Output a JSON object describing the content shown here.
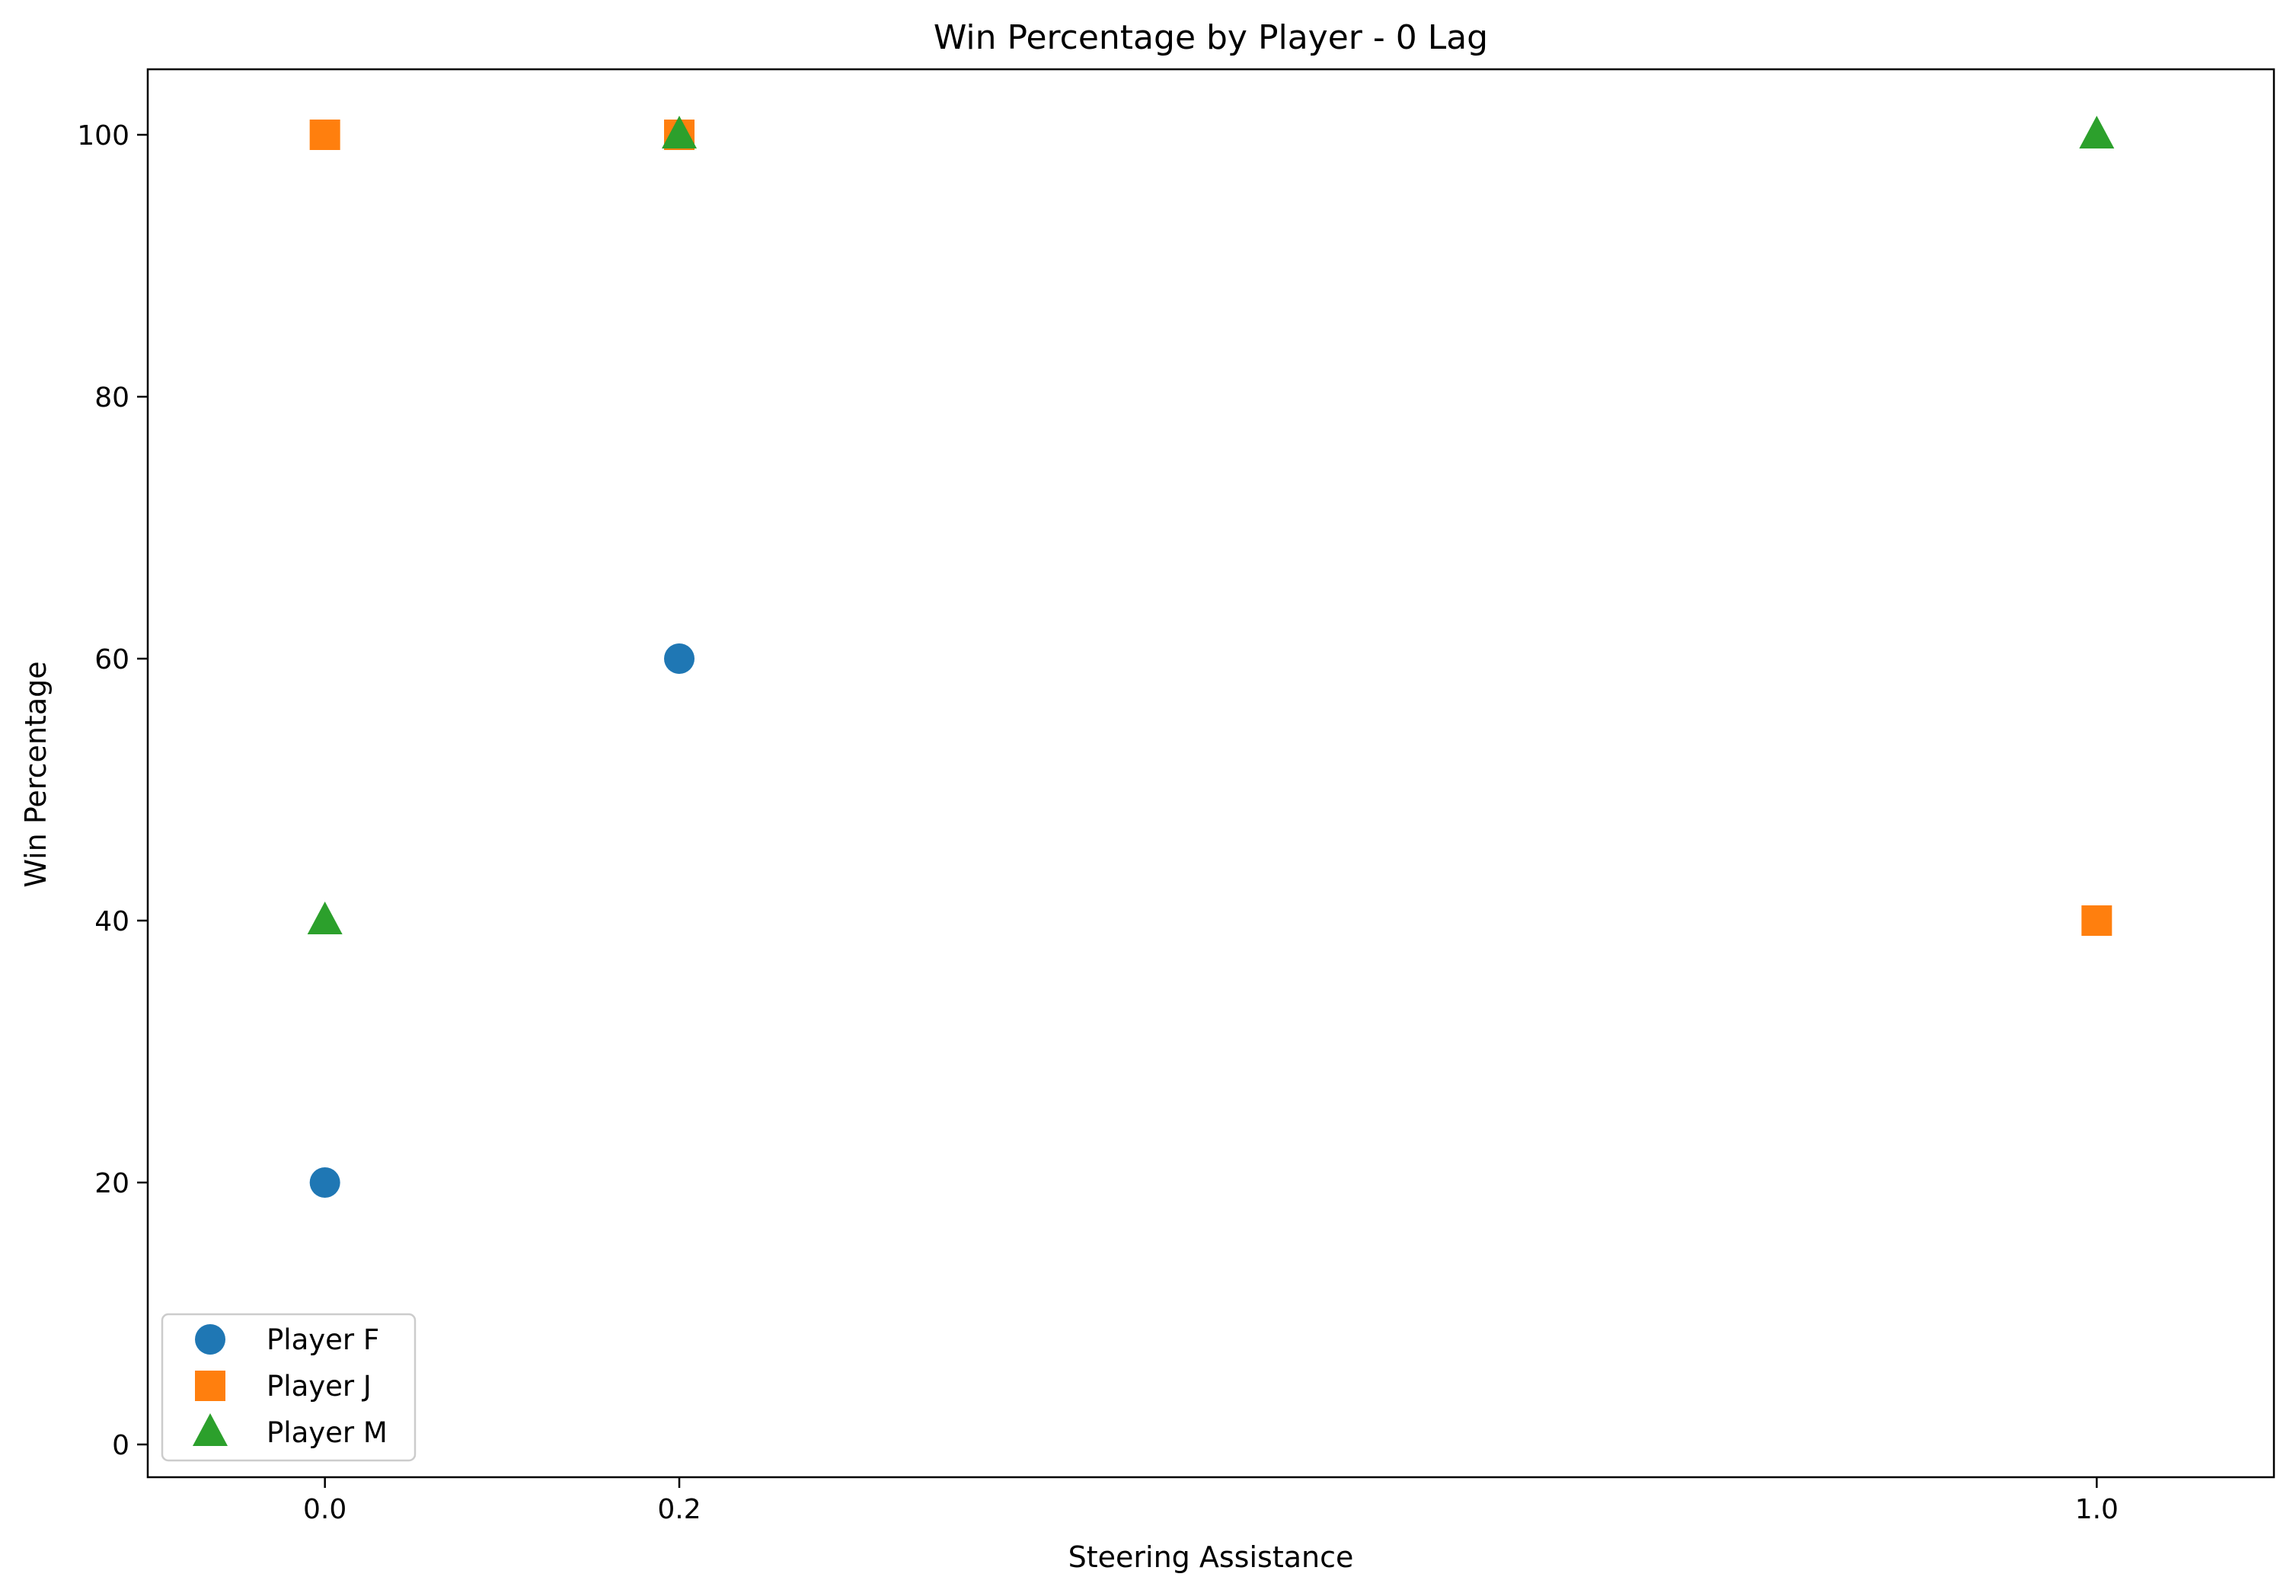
{
  "chart_data": {
    "type": "scatter",
    "title": "Win Percentage by Player - 0 Lag",
    "xlabel": "Steering Assistance",
    "ylabel": "Win Percentage",
    "x_ticks": [
      0.0,
      0.2,
      1.0
    ],
    "x_tick_labels": [
      "0.0",
      "0.2",
      "1.0"
    ],
    "y_ticks": [
      0,
      20,
      40,
      60,
      80,
      100
    ],
    "y_tick_labels": [
      "0",
      "20",
      "40",
      "60",
      "80",
      "100"
    ],
    "xlim": [
      -0.1,
      1.1
    ],
    "ylim": [
      -2.5,
      105
    ],
    "grid": false,
    "legend_position": "lower-left",
    "series": [
      {
        "name": "Player F",
        "marker": "circle",
        "color": "#1f77b4",
        "x": [
          0.0,
          0.2
        ],
        "y": [
          20,
          60
        ]
      },
      {
        "name": "Player J",
        "marker": "square",
        "color": "#ff7f0e",
        "x": [
          0.0,
          0.2,
          1.0
        ],
        "y": [
          100,
          100,
          40
        ]
      },
      {
        "name": "Player M",
        "marker": "triangle",
        "color": "#2ca02c",
        "x": [
          0.0,
          0.2,
          1.0
        ],
        "y": [
          40,
          100,
          100
        ]
      }
    ]
  }
}
